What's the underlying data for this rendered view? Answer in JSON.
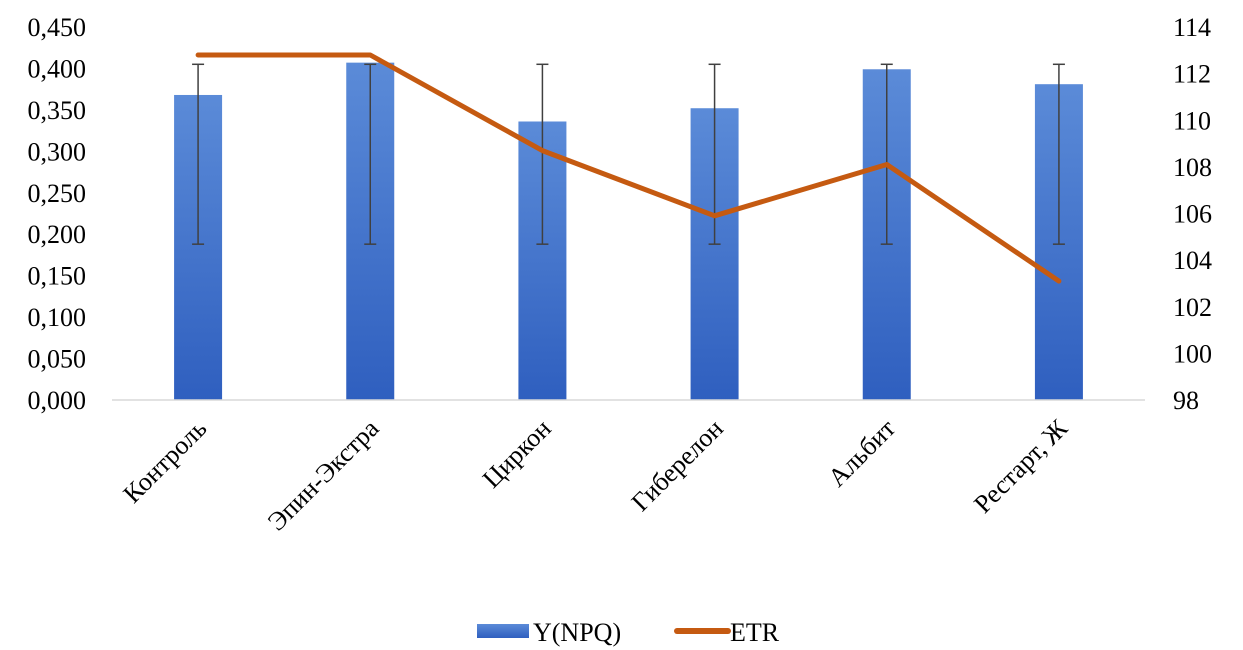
{
  "chart_data": {
    "type": "bar",
    "categories": [
      "Контроль",
      "Эпин-Экстра",
      "Циркон",
      "Гиберелон",
      "Альбит",
      "Рестарт, Ж"
    ],
    "series": [
      {
        "name": "Y(NPQ)",
        "chart_type": "bar",
        "axis": "left",
        "color": "#3d6fca",
        "values": [
          0.368,
          0.407,
          0.336,
          0.352,
          0.399,
          0.381
        ],
        "error_low": [
          0.188,
          0.188,
          0.188,
          0.188,
          0.188,
          0.188
        ],
        "error_high": [
          0.405,
          0.405,
          0.405,
          0.405,
          0.405,
          0.405
        ]
      },
      {
        "name": "ETR",
        "chart_type": "line",
        "axis": "right",
        "color": "#c55a11",
        "values": [
          112.8,
          112.8,
          108.7,
          105.9,
          108.1,
          103.1
        ]
      }
    ],
    "y_left": {
      "ylim": [
        0,
        0.45
      ],
      "ticks": [
        "0,000",
        "0,050",
        "0,100",
        "0,150",
        "0,200",
        "0,250",
        "0,300",
        "0,350",
        "0,400",
        "0,450"
      ]
    },
    "y_right": {
      "ylim": [
        98,
        114
      ],
      "ticks": [
        "98",
        "100",
        "102",
        "104",
        "106",
        "108",
        "110",
        "112",
        "114"
      ]
    },
    "grid": false,
    "legend": {
      "position": "bottom",
      "labels": [
        "Y(NPQ)",
        "ETR"
      ]
    }
  }
}
